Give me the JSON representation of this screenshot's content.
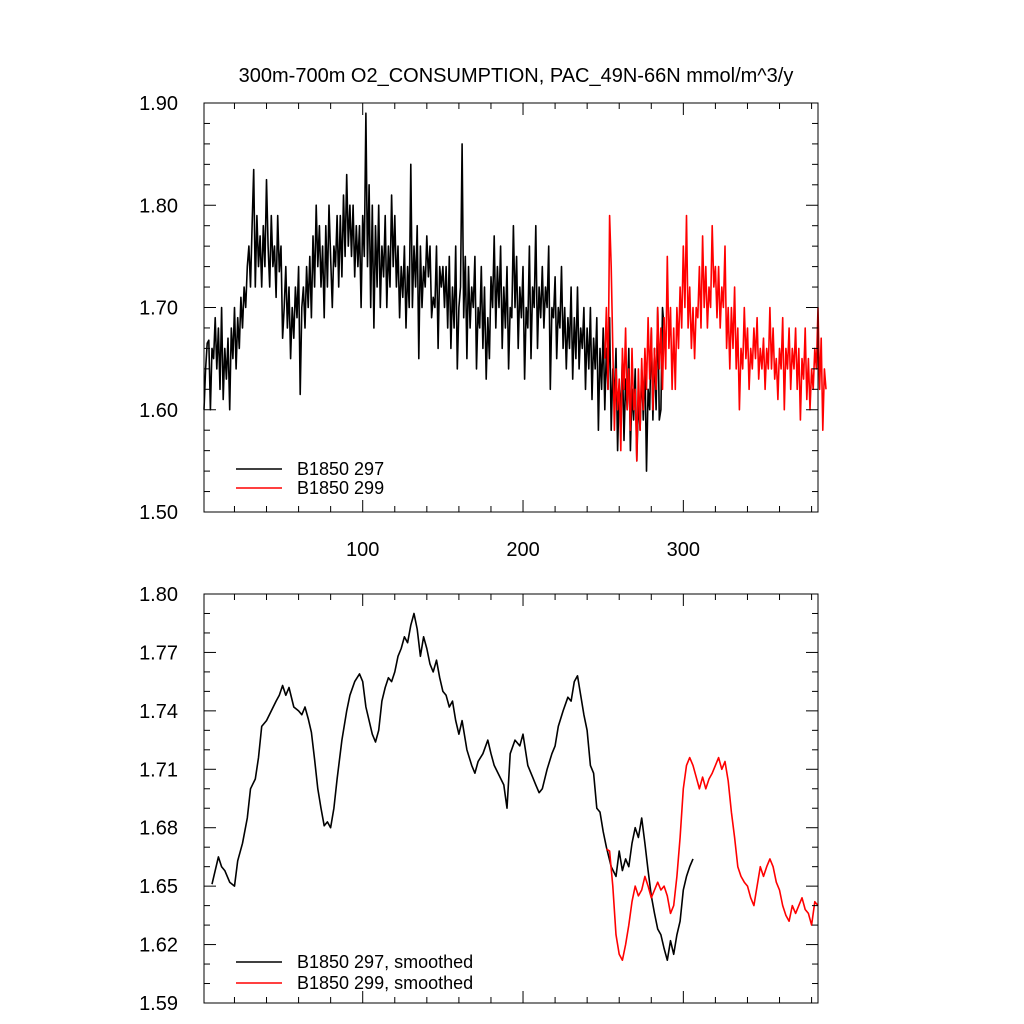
{
  "chart_data": [
    {
      "type": "line",
      "title": "300m-700m O2_CONSUMPTION, PAC_49N-66N  mmol/m^3/y",
      "xlabel": "",
      "ylabel": "",
      "xlim": [
        1,
        384
      ],
      "ylim": [
        1.5,
        1.9
      ],
      "x_ticks": [
        100,
        200,
        300
      ],
      "x_tick_labels": [
        "100",
        "200",
        "300"
      ],
      "y_ticks": [
        1.5,
        1.6,
        1.7,
        1.8,
        1.9
      ],
      "y_tick_labels": [
        "1.50",
        "1.60",
        "1.70",
        "1.80",
        "1.90"
      ],
      "legend_position": "bottom-left",
      "series": [
        {
          "name": "B1850 297",
          "color": "#000000",
          "x_start": 1,
          "values": [
            1.6,
            1.64,
            1.665,
            1.668,
            1.6,
            1.66,
            1.65,
            1.69,
            1.64,
            1.68,
            1.62,
            1.7,
            1.61,
            1.66,
            1.63,
            1.67,
            1.6,
            1.68,
            1.65,
            1.7,
            1.64,
            1.69,
            1.66,
            1.71,
            1.68,
            1.72,
            1.7,
            1.74,
            1.76,
            1.72,
            1.78,
            1.835,
            1.72,
            1.79,
            1.74,
            1.77,
            1.72,
            1.78,
            1.74,
            1.825,
            1.76,
            1.72,
            1.79,
            1.74,
            1.76,
            1.71,
            1.79,
            1.735,
            1.76,
            1.67,
            1.7,
            1.74,
            1.68,
            1.72,
            1.65,
            1.7,
            1.67,
            1.72,
            1.69,
            1.74,
            1.615,
            1.7,
            1.72,
            1.68,
            1.74,
            1.7,
            1.75,
            1.69,
            1.77,
            1.72,
            1.8,
            1.74,
            1.78,
            1.72,
            1.76,
            1.69,
            1.78,
            1.72,
            1.8,
            1.75,
            1.7,
            1.76,
            1.74,
            1.79,
            1.72,
            1.79,
            1.73,
            1.81,
            1.75,
            1.83,
            1.76,
            1.8,
            1.75,
            1.8,
            1.73,
            1.78,
            1.74,
            1.78,
            1.7,
            1.79,
            1.75,
            1.89,
            1.74,
            1.82,
            1.7,
            1.8,
            1.68,
            1.78,
            1.72,
            1.8,
            1.7,
            1.76,
            1.73,
            1.79,
            1.7,
            1.76,
            1.72,
            1.81,
            1.74,
            1.79,
            1.72,
            1.76,
            1.69,
            1.74,
            1.71,
            1.76,
            1.68,
            1.74,
            1.7,
            1.84,
            1.7,
            1.76,
            1.72,
            1.78,
            1.65,
            1.76,
            1.7,
            1.74,
            1.72,
            1.77,
            1.73,
            1.76,
            1.69,
            1.71,
            1.7,
            1.76,
            1.66,
            1.74,
            1.72,
            1.74,
            1.7,
            1.74,
            1.68,
            1.75,
            1.66,
            1.72,
            1.68,
            1.76,
            1.64,
            1.7,
            1.72,
            1.86,
            1.69,
            1.75,
            1.65,
            1.74,
            1.68,
            1.72,
            1.7,
            1.75,
            1.64,
            1.7,
            1.68,
            1.74,
            1.66,
            1.72,
            1.63,
            1.69,
            1.65,
            1.73,
            1.7,
            1.77,
            1.68,
            1.74,
            1.7,
            1.76,
            1.66,
            1.72,
            1.68,
            1.74,
            1.64,
            1.7,
            1.69,
            1.78,
            1.7,
            1.75,
            1.66,
            1.72,
            1.69,
            1.74,
            1.63,
            1.7,
            1.68,
            1.76,
            1.65,
            1.72,
            1.7,
            1.78,
            1.66,
            1.72,
            1.69,
            1.74,
            1.68,
            1.72,
            1.7,
            1.76,
            1.62,
            1.7,
            1.69,
            1.73,
            1.65,
            1.7,
            1.68,
            1.74,
            1.66,
            1.7,
            1.64,
            1.69,
            1.66,
            1.72,
            1.63,
            1.69,
            1.65,
            1.72,
            1.64,
            1.68,
            1.66,
            1.7,
            1.62,
            1.68,
            1.64,
            1.7,
            1.61,
            1.67,
            1.64,
            1.69,
            1.58,
            1.66,
            1.62,
            1.68,
            1.6,
            1.66,
            1.62,
            1.69,
            1.58,
            1.64,
            1.61,
            1.66,
            1.56,
            1.62,
            1.6,
            1.65,
            1.57,
            1.63,
            1.6,
            1.66,
            1.56,
            1.62,
            1.59,
            1.64,
            1.55,
            1.61,
            1.58,
            1.64,
            1.59,
            1.65,
            1.54,
            1.62,
            1.6,
            1.68,
            1.59,
            1.66,
            1.6,
            1.7,
            1.59,
            1.6,
            1.7,
            1.68
          ]
        },
        {
          "name": "B1850 299",
          "color": "#ff0000",
          "x_start": 251,
          "values": [
            1.65,
            1.7,
            1.62,
            1.79,
            1.74,
            1.66,
            1.58,
            1.64,
            1.6,
            1.63,
            1.56,
            1.66,
            1.62,
            1.68,
            1.6,
            1.64,
            1.58,
            1.66,
            1.6,
            1.62,
            1.55,
            1.64,
            1.58,
            1.65,
            1.6,
            1.66,
            1.62,
            1.69,
            1.63,
            1.68,
            1.6,
            1.66,
            1.62,
            1.7,
            1.64,
            1.68,
            1.62,
            1.69,
            1.64,
            1.75,
            1.66,
            1.7,
            1.62,
            1.68,
            1.62,
            1.7,
            1.66,
            1.72,
            1.68,
            1.76,
            1.7,
            1.79,
            1.68,
            1.72,
            1.66,
            1.7,
            1.65,
            1.7,
            1.69,
            1.74,
            1.68,
            1.77,
            1.7,
            1.74,
            1.68,
            1.72,
            1.7,
            1.78,
            1.72,
            1.74,
            1.69,
            1.74,
            1.68,
            1.72,
            1.7,
            1.76,
            1.66,
            1.7,
            1.64,
            1.7,
            1.66,
            1.72,
            1.64,
            1.68,
            1.6,
            1.66,
            1.64,
            1.7,
            1.65,
            1.68,
            1.62,
            1.66,
            1.64,
            1.68,
            1.65,
            1.69,
            1.63,
            1.66,
            1.64,
            1.67,
            1.62,
            1.66,
            1.64,
            1.7,
            1.64,
            1.68,
            1.63,
            1.65,
            1.61,
            1.66,
            1.64,
            1.69,
            1.6,
            1.66,
            1.64,
            1.68,
            1.62,
            1.66,
            1.64,
            1.68,
            1.62,
            1.66,
            1.59,
            1.65,
            1.63,
            1.68,
            1.61,
            1.65,
            1.6,
            1.64,
            1.62,
            1.66,
            1.64,
            1.7,
            1.62,
            1.67,
            1.58,
            1.64,
            1.62
          ]
        }
      ]
    },
    {
      "type": "line",
      "title": "",
      "xlabel": "",
      "ylabel": "",
      "xlim": [
        1,
        384
      ],
      "ylim": [
        1.59,
        1.8
      ],
      "x_ticks": [
        100,
        200,
        300
      ],
      "x_tick_labels": [],
      "y_ticks": [
        1.59,
        1.62,
        1.65,
        1.68,
        1.71,
        1.74,
        1.77,
        1.8
      ],
      "y_tick_labels": [
        "1.59",
        "1.62",
        "1.65",
        "1.68",
        "1.71",
        "1.74",
        "1.77",
        "1.80"
      ],
      "legend_position": "bottom-left",
      "series": [
        {
          "name": "B1850 297, smoothed",
          "color": "#000000",
          "x": [
            6,
            10,
            12,
            14,
            17,
            20,
            22,
            25,
            28,
            30,
            33,
            35,
            37,
            40,
            43,
            46,
            48,
            50,
            52,
            54,
            57,
            60,
            62,
            64,
            66,
            68,
            70,
            72,
            74,
            76,
            78,
            80,
            82,
            84,
            87,
            90,
            92,
            95,
            98,
            100,
            102,
            104,
            106,
            108,
            110,
            112,
            114,
            116,
            118,
            120,
            122,
            124,
            126,
            128,
            130,
            132,
            134,
            136,
            138,
            140,
            142,
            144,
            146,
            148,
            150,
            152,
            154,
            156,
            158,
            160,
            162,
            165,
            168,
            170,
            172,
            175,
            178,
            180,
            182,
            185,
            188,
            190,
            192,
            195,
            198,
            200,
            203,
            206,
            208,
            210,
            212,
            215,
            218,
            220,
            222,
            225,
            228,
            230,
            232,
            234,
            236,
            238,
            240,
            242,
            244,
            246,
            248,
            250,
            252,
            255,
            258,
            260,
            262,
            264,
            266,
            268,
            270,
            272,
            274,
            276,
            278,
            280,
            282,
            284,
            286,
            288,
            290,
            292,
            294,
            296,
            298,
            300,
            302,
            304,
            306
          ],
          "values": [
            1.651,
            1.665,
            1.66,
            1.658,
            1.652,
            1.65,
            1.663,
            1.672,
            1.685,
            1.7,
            1.705,
            1.716,
            1.732,
            1.735,
            1.74,
            1.745,
            1.748,
            1.753,
            1.748,
            1.752,
            1.742,
            1.74,
            1.738,
            1.742,
            1.736,
            1.729,
            1.715,
            1.7,
            1.69,
            1.681,
            1.683,
            1.68,
            1.69,
            1.705,
            1.725,
            1.74,
            1.748,
            1.755,
            1.759,
            1.755,
            1.742,
            1.735,
            1.728,
            1.724,
            1.73,
            1.745,
            1.752,
            1.757,
            1.755,
            1.76,
            1.768,
            1.772,
            1.778,
            1.775,
            1.784,
            1.79,
            1.782,
            1.768,
            1.778,
            1.772,
            1.764,
            1.76,
            1.766,
            1.757,
            1.75,
            1.748,
            1.742,
            1.745,
            1.735,
            1.728,
            1.735,
            1.72,
            1.712,
            1.708,
            1.714,
            1.718,
            1.725,
            1.718,
            1.712,
            1.707,
            1.702,
            1.69,
            1.718,
            1.725,
            1.722,
            1.728,
            1.712,
            1.706,
            1.702,
            1.698,
            1.7,
            1.71,
            1.718,
            1.722,
            1.732,
            1.74,
            1.747,
            1.745,
            1.755,
            1.758,
            1.748,
            1.738,
            1.73,
            1.712,
            1.708,
            1.69,
            1.688,
            1.678,
            1.67,
            1.66,
            1.655,
            1.668,
            1.658,
            1.664,
            1.66,
            1.672,
            1.68,
            1.675,
            1.685,
            1.672,
            1.658,
            1.645,
            1.636,
            1.628,
            1.625,
            1.618,
            1.612,
            1.622,
            1.615,
            1.625,
            1.632,
            1.648,
            1.655,
            1.66,
            1.664
          ]
        },
        {
          "name": "B1850 299, smoothed",
          "color": "#ff0000",
          "x": [
            252,
            254,
            256,
            258,
            260,
            262,
            264,
            266,
            268,
            270,
            272,
            274,
            276,
            278,
            280,
            282,
            284,
            286,
            288,
            290,
            292,
            294,
            296,
            298,
            300,
            302,
            304,
            306,
            308,
            310,
            312,
            314,
            316,
            318,
            320,
            322,
            324,
            326,
            328,
            330,
            332,
            334,
            336,
            338,
            340,
            342,
            344,
            346,
            348,
            350,
            352,
            354,
            356,
            358,
            360,
            362,
            364,
            366,
            368,
            370,
            372,
            374,
            376,
            378,
            380,
            382,
            384
          ],
          "values": [
            1.669,
            1.668,
            1.65,
            1.625,
            1.615,
            1.612,
            1.62,
            1.63,
            1.642,
            1.65,
            1.645,
            1.648,
            1.655,
            1.65,
            1.644,
            1.648,
            1.652,
            1.648,
            1.65,
            1.645,
            1.636,
            1.64,
            1.655,
            1.675,
            1.7,
            1.712,
            1.716,
            1.712,
            1.706,
            1.7,
            1.706,
            1.7,
            1.705,
            1.708,
            1.712,
            1.716,
            1.71,
            1.714,
            1.704,
            1.688,
            1.675,
            1.66,
            1.655,
            1.652,
            1.65,
            1.644,
            1.64,
            1.65,
            1.66,
            1.655,
            1.66,
            1.664,
            1.66,
            1.652,
            1.648,
            1.64,
            1.635,
            1.632,
            1.64,
            1.636,
            1.64,
            1.644,
            1.638,
            1.636,
            1.63,
            1.642,
            1.64
          ]
        }
      ]
    }
  ]
}
